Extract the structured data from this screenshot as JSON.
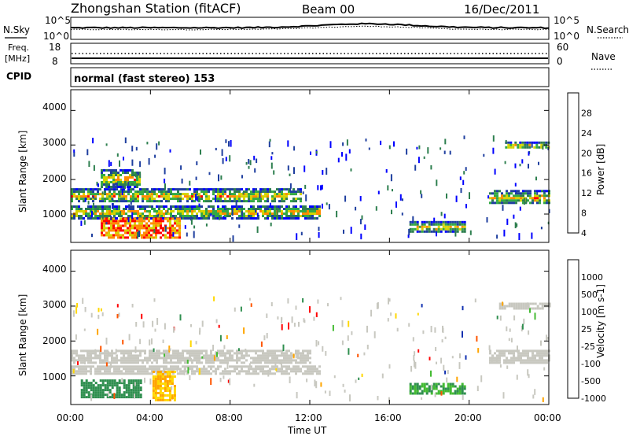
{
  "header": {
    "station": "Zhongshan Station (fitACF)",
    "beam": "Beam 00",
    "date": "16/Dec/2011"
  },
  "sky_panel": {
    "left_label": "N.Sky",
    "left_ticks": [
      "10^5",
      "10^0"
    ],
    "right_label": "N.Search",
    "right_ticks": [
      "10^5",
      "10^0"
    ],
    "right_line_style": "dotted"
  },
  "freq_panel": {
    "left_label": "Freq.",
    "left_unit": "[MHz]",
    "left_ticks": [
      "18",
      "8"
    ],
    "right_label": "Nave",
    "right_ticks": [
      "60",
      "0"
    ],
    "right_line_style": "dotted"
  },
  "cpid_panel": {
    "label": "CPID",
    "text": "normal (fast stereo) 153"
  },
  "chart_data": [
    {
      "type": "heatmap",
      "panel": "power",
      "ylabel": "Slant Range [km]",
      "yticks": [
        "4000",
        "3000",
        "2000",
        "1000"
      ],
      "ylim": [
        180,
        4600
      ],
      "colorbar_label": "Power [dB]",
      "colorbar_ticks": [
        "28",
        "24",
        "20",
        "16",
        "12",
        "8",
        "4"
      ],
      "colors": [
        "#0000ff",
        "#1f3f9f",
        "#2e7f4f",
        "#33aa44",
        "#d4d400",
        "#ff8c00",
        "#ff0000"
      ],
      "echo_regions": [
        {
          "t_start": 0.0,
          "t_end": 11.5,
          "range_low": 1350,
          "range_high": 1750
        },
        {
          "t_start": 0.0,
          "t_end": 12.5,
          "range_low": 900,
          "range_high": 1250
        },
        {
          "t_start": 1.5,
          "t_end": 5.5,
          "range_low": 300,
          "range_high": 900
        },
        {
          "t_start": 1.5,
          "t_end": 3.5,
          "range_low": 1800,
          "range_high": 2300
        },
        {
          "t_start": 17.0,
          "t_end": 19.8,
          "range_low": 500,
          "range_high": 800
        },
        {
          "t_start": 21.0,
          "t_end": 24.0,
          "range_low": 1300,
          "range_high": 1700
        },
        {
          "t_start": 21.8,
          "t_end": 24.0,
          "range_low": 2900,
          "range_high": 3100
        }
      ]
    },
    {
      "type": "heatmap",
      "panel": "velocity",
      "ylabel": "Slant Range [km]",
      "yticks": [
        "4000",
        "3000",
        "2000",
        "1000"
      ],
      "ylim": [
        180,
        4600
      ],
      "colorbar_label": "Velocity [m s-1]",
      "colorbar_ticks": [
        "1000",
        "500",
        "100",
        "25",
        "-25",
        "-100",
        "-500",
        "-1000"
      ],
      "colors": [
        "#1030b0",
        "#2f8f4f",
        "#44bb33",
        "#c8c8c0",
        "#ffd700",
        "#ffa500",
        "#ff5500",
        "#ff0000"
      ],
      "echo_regions": [
        {
          "t_start": 0.0,
          "t_end": 12.0,
          "range_low": 1350,
          "range_high": 1750
        },
        {
          "t_start": 0.0,
          "t_end": 12.5,
          "range_low": 1050,
          "range_high": 1300
        },
        {
          "t_start": 0.5,
          "t_end": 3.5,
          "range_low": 400,
          "range_high": 900
        },
        {
          "t_start": 4.1,
          "t_end": 5.2,
          "range_low": 300,
          "range_high": 1150
        },
        {
          "t_start": 17.0,
          "t_end": 19.8,
          "range_low": 500,
          "range_high": 800
        },
        {
          "t_start": 21.0,
          "t_end": 24.0,
          "range_low": 1350,
          "range_high": 1750
        },
        {
          "t_start": 21.5,
          "t_end": 24.0,
          "range_low": 2900,
          "range_high": 3100
        }
      ]
    }
  ],
  "x_axis": {
    "label": "Time UT",
    "ticks": [
      "00:00",
      "04:00",
      "08:00",
      "12:00",
      "16:00",
      "20:00",
      "00:00"
    ],
    "range_hours": [
      0,
      24
    ]
  }
}
